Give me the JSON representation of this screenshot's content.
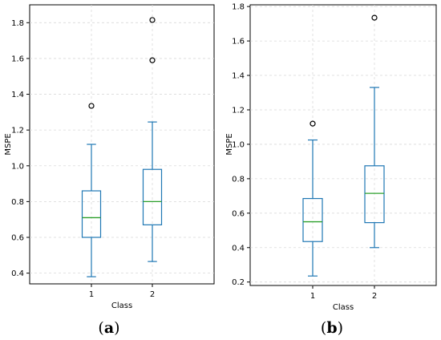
{
  "chart_data": [
    {
      "type": "box",
      "panel_label": "a",
      "xlabel": "Class",
      "ylabel": "MSPE",
      "categories": [
        "1",
        "2"
      ],
      "ylim": [
        0.34,
        1.9
      ],
      "yticks": [
        0.4,
        0.6,
        0.8,
        1.0,
        1.2,
        1.4,
        1.6,
        1.8
      ],
      "ytick_labels": [
        "0.4",
        "0.6",
        "0.8",
        "1.0",
        "1.2",
        "1.4",
        "1.6",
        "1.8"
      ],
      "grid": true,
      "boxes": [
        {
          "category": "1",
          "whislo": 0.38,
          "q1": 0.6,
          "med": 0.71,
          "q3": 0.86,
          "whishi": 1.12,
          "fliers": [
            1.335
          ]
        },
        {
          "category": "2",
          "whislo": 0.465,
          "q1": 0.67,
          "med": 0.8,
          "q3": 0.98,
          "whishi": 1.245,
          "fliers": [
            1.59,
            1.815
          ]
        }
      ]
    },
    {
      "type": "box",
      "panel_label": "b",
      "xlabel": "Class",
      "ylabel": "MSPE",
      "categories": [
        "1",
        "2"
      ],
      "ylim": [
        0.18,
        1.81
      ],
      "yticks": [
        0.2,
        0.4,
        0.6,
        0.8,
        1.0,
        1.2,
        1.4,
        1.6,
        1.8
      ],
      "ytick_labels": [
        "0.2",
        "0.4",
        "0.6",
        "0.8",
        "1.0",
        "1.2",
        "1.4",
        "1.6",
        "1.8"
      ],
      "grid": true,
      "boxes": [
        {
          "category": "1",
          "whislo": 0.235,
          "q1": 0.435,
          "med": 0.55,
          "q3": 0.685,
          "whishi": 1.025,
          "fliers": [
            1.12
          ]
        },
        {
          "category": "2",
          "whislo": 0.4,
          "q1": 0.545,
          "med": 0.715,
          "q3": 0.875,
          "whishi": 1.33,
          "fliers": [
            1.735
          ]
        }
      ]
    }
  ],
  "colors": {
    "box": "#1f77b4",
    "median": "#2ca02c",
    "grid": "#d9d9d9",
    "frame": "#000000"
  }
}
